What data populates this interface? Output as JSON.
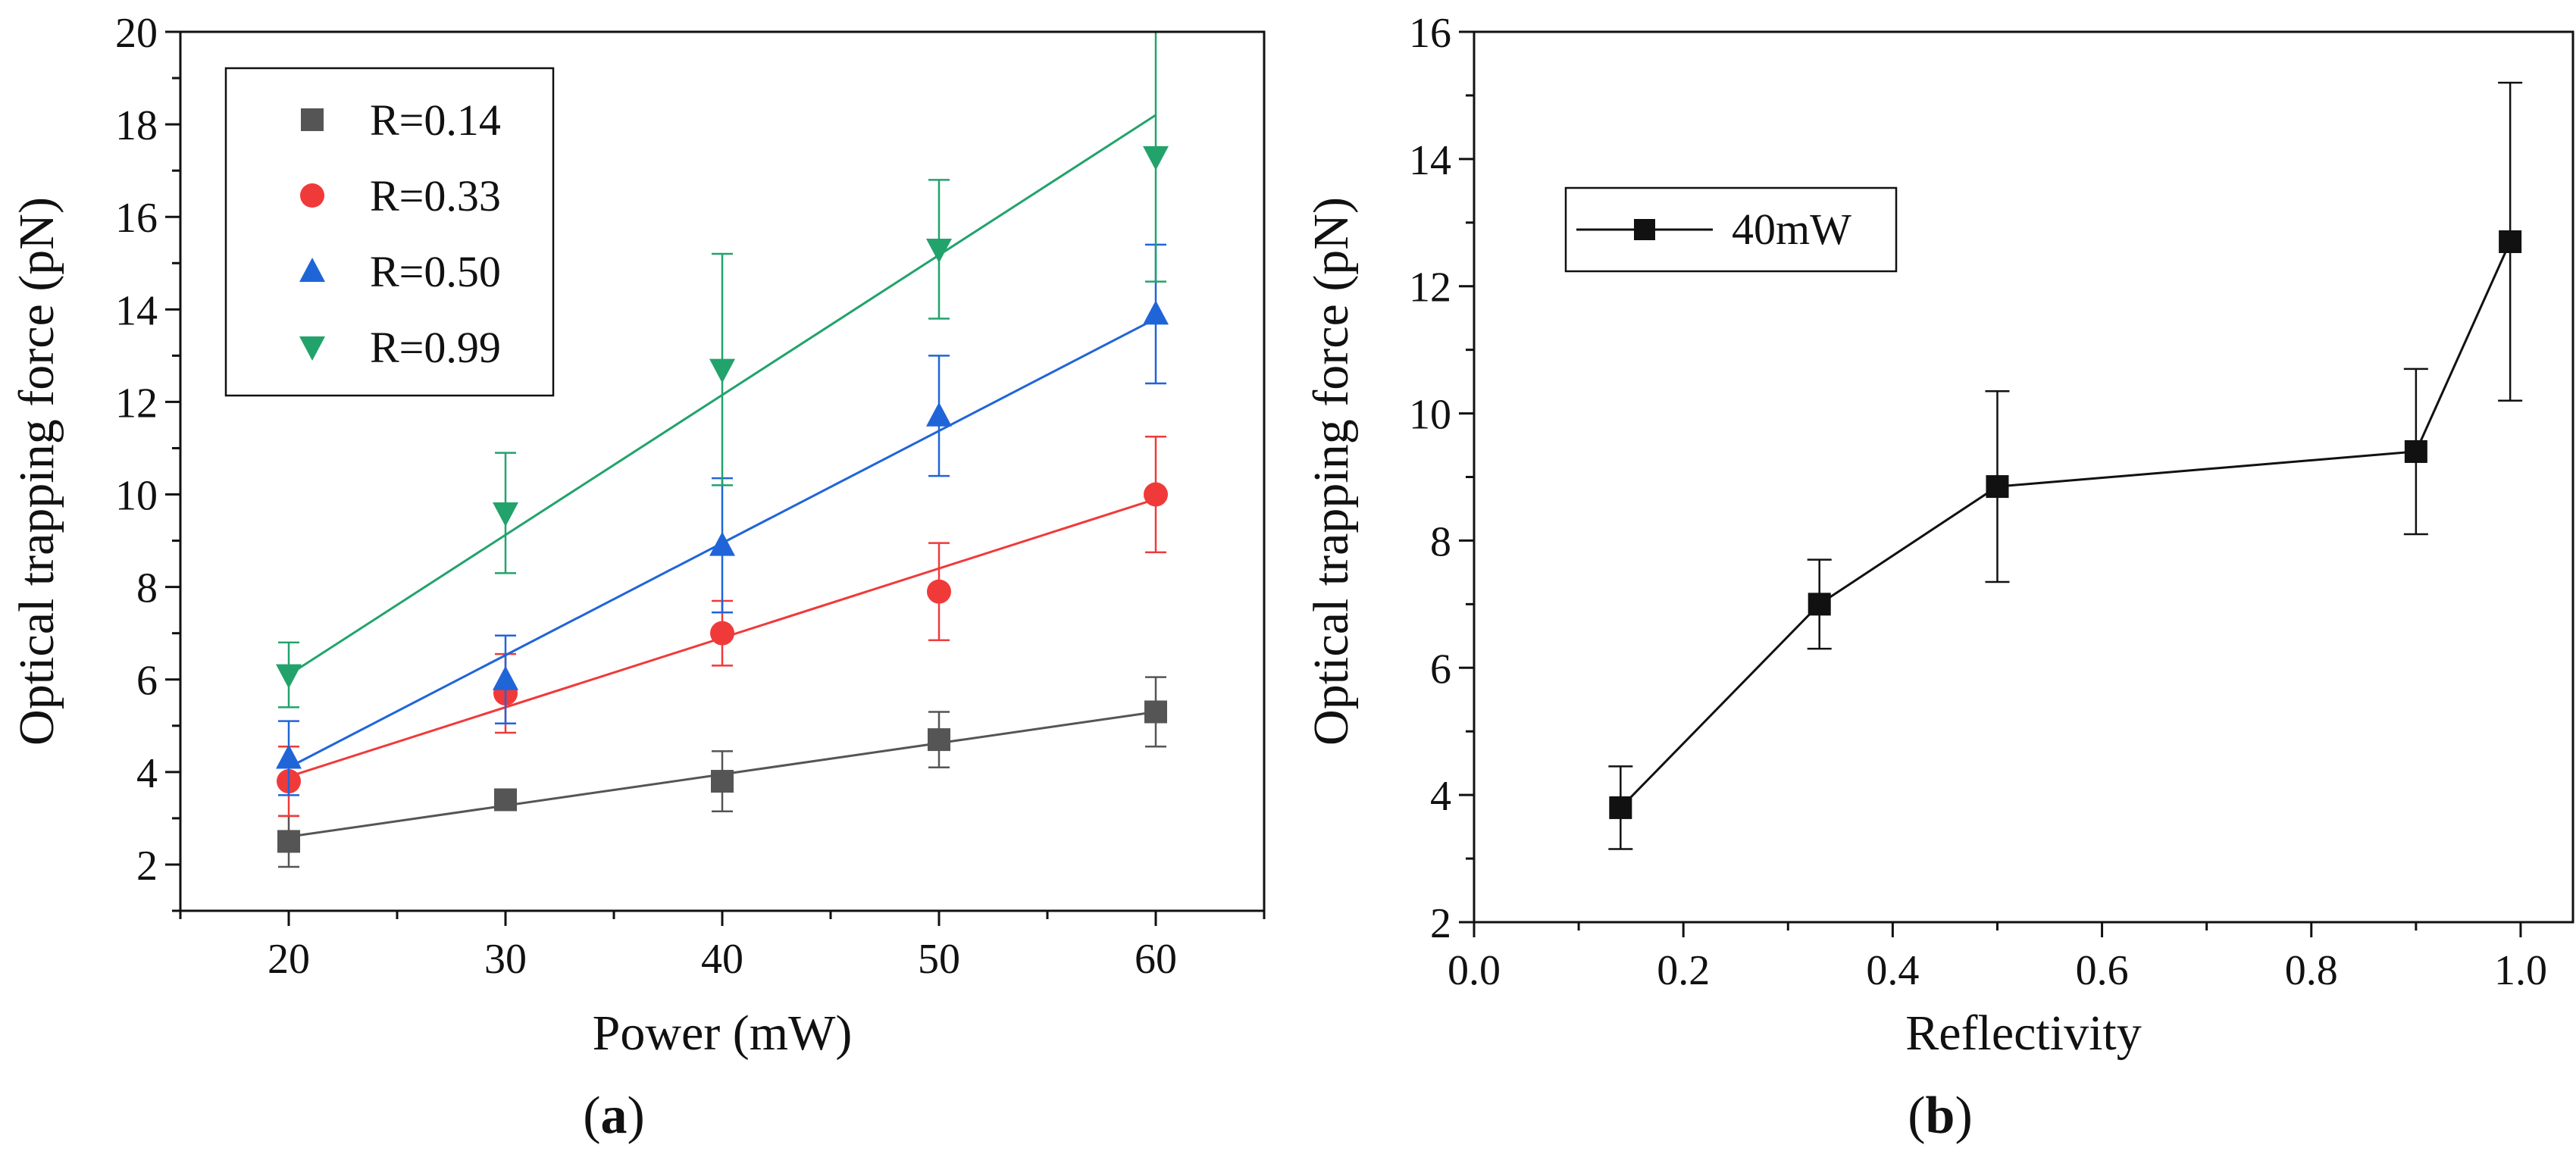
{
  "chart_data": [
    {
      "type": "scatter",
      "panel_label": {
        "open": "(",
        "letter": "a",
        "close": ")"
      },
      "title": "",
      "xlabel": "Power (mW)",
      "ylabel": "Optical trapping force (pN)",
      "xlim": [
        15,
        65
      ],
      "ylim": [
        1,
        20
      ],
      "xticks": [
        "20",
        "30",
        "40",
        "50",
        "60"
      ],
      "yticks": [
        "2",
        "4",
        "6",
        "8",
        "10",
        "12",
        "14",
        "16",
        "18",
        "20"
      ],
      "x": [
        20,
        30,
        40,
        50,
        60
      ],
      "legend_position": "top-left",
      "series": [
        {
          "name": "R=0.14",
          "marker": "square",
          "color": "#555555",
          "y": [
            2.5,
            3.4,
            3.8,
            4.7,
            5.3
          ],
          "err": [
            0.55,
            0.15,
            0.65,
            0.6,
            0.75
          ],
          "fit": [
            2.6,
            5.3
          ]
        },
        {
          "name": "R=0.33",
          "marker": "circle",
          "color": "#f03a3a",
          "y": [
            3.8,
            5.7,
            7.0,
            7.9,
            10.0
          ],
          "err": [
            0.75,
            0.85,
            0.7,
            1.05,
            1.25
          ],
          "fit": [
            3.9,
            9.9
          ]
        },
        {
          "name": "R=0.50",
          "marker": "triangle-up",
          "color": "#2065d8",
          "y": [
            4.3,
            6.0,
            8.9,
            11.7,
            13.9
          ],
          "err": [
            0.8,
            0.95,
            1.45,
            1.3,
            1.5
          ],
          "fit": [
            4.1,
            13.8
          ]
        },
        {
          "name": "R=0.99",
          "marker": "triangle-down",
          "color": "#22a36c",
          "y": [
            6.1,
            9.6,
            12.7,
            15.3,
            17.3
          ],
          "err": [
            0.7,
            1.3,
            2.5,
            1.5,
            2.7
          ],
          "fit": [
            6.1,
            18.2
          ]
        }
      ]
    },
    {
      "type": "line",
      "panel_label": {
        "open": "(",
        "letter": "b",
        "close": ")"
      },
      "title": "",
      "xlabel": "Reflectivity",
      "ylabel": "Optical trapping force (pN)",
      "xlim": [
        0.0,
        1.05
      ],
      "ylim": [
        2,
        16
      ],
      "xticks": [
        "0.0",
        "0.2",
        "0.4",
        "0.6",
        "0.8",
        "1.0"
      ],
      "yticks": [
        "2",
        "4",
        "6",
        "8",
        "10",
        "12",
        "14",
        "16"
      ],
      "legend_position": "top-left",
      "series": [
        {
          "name": "40mW",
          "marker": "square",
          "color": "#111111",
          "x": [
            0.14,
            0.33,
            0.5,
            0.9,
            0.99
          ],
          "y": [
            3.8,
            7.0,
            8.85,
            9.4,
            12.7
          ],
          "err": [
            0.65,
            0.7,
            1.5,
            1.3,
            2.5
          ]
        }
      ]
    }
  ]
}
